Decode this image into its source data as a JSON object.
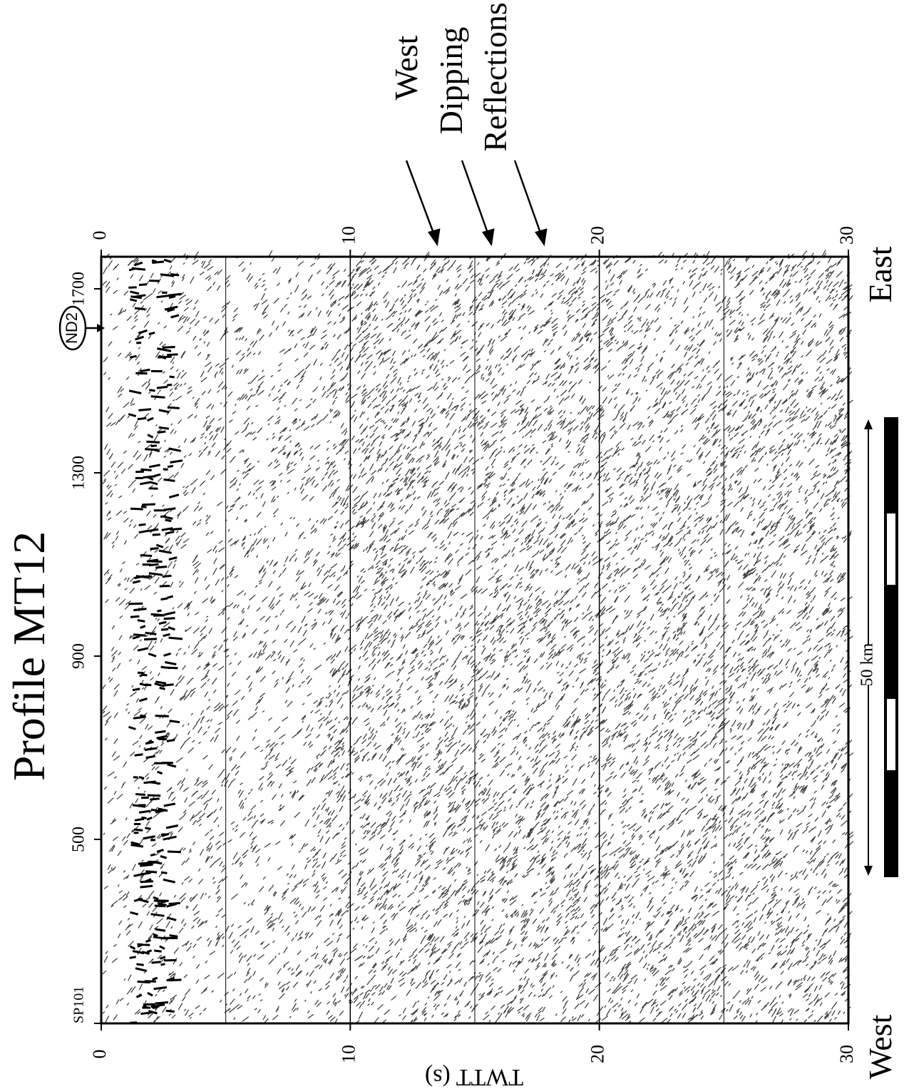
{
  "title": "Profile MT12",
  "annotation": {
    "lines": [
      "West",
      "Dipping",
      "Reflections"
    ]
  },
  "marker": "ND2",
  "scale_bar": "50 km",
  "axis_title": "TWTT (s)",
  "time_ticks_top": [
    "0",
    "10",
    "20",
    "30"
  ],
  "time_ticks_bottom": [
    "0",
    "10",
    "20",
    "30"
  ],
  "shot_points": [
    "SP101",
    "500",
    "900",
    "1300",
    "1700"
  ],
  "ends": {
    "west": "West",
    "east": "East"
  }
}
